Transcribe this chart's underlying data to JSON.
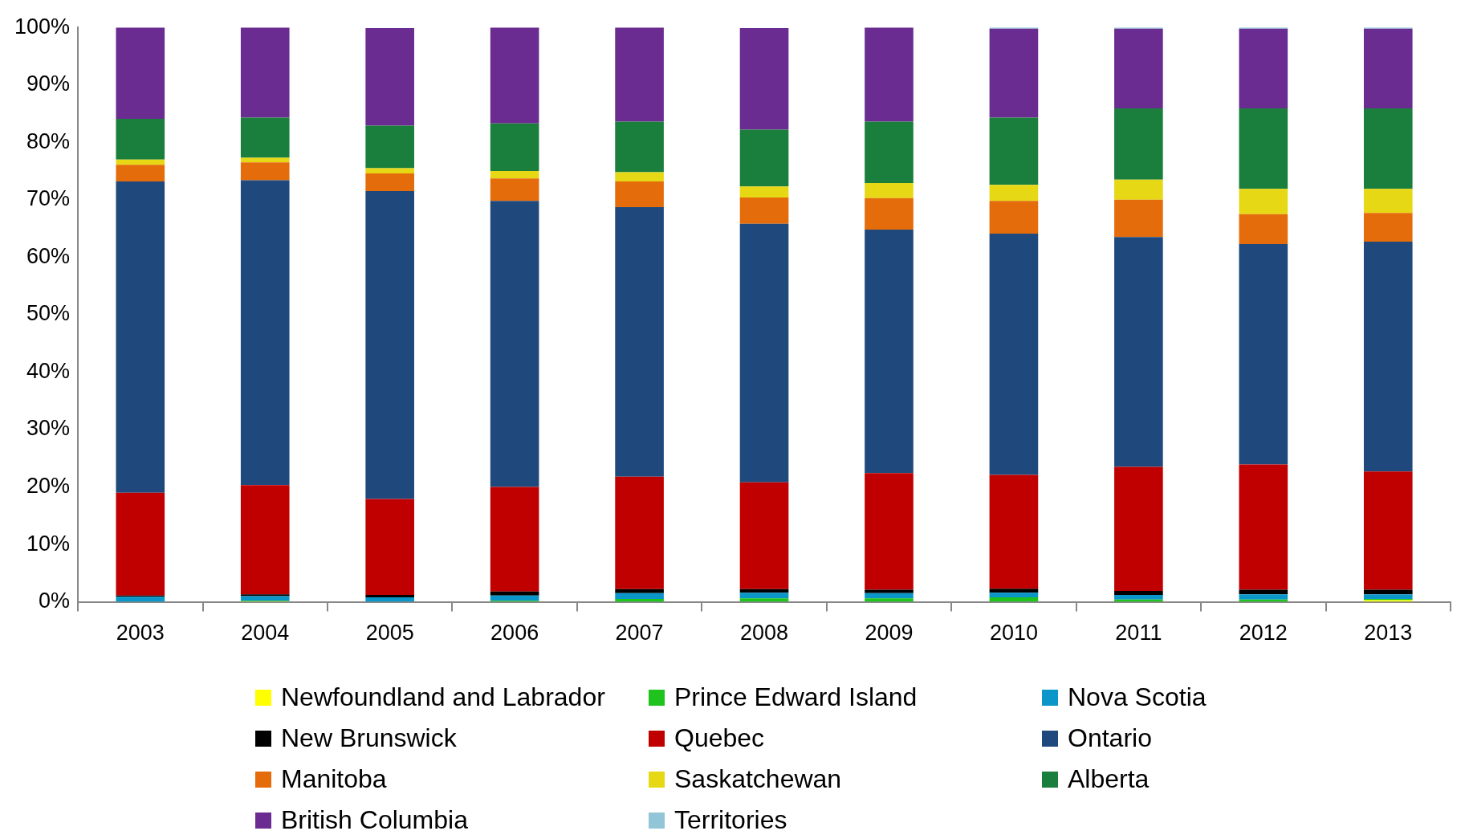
{
  "chart_data": {
    "type": "bar",
    "stacked": true,
    "categories": [
      "2003",
      "2004",
      "2005",
      "2006",
      "2007",
      "2008",
      "2009",
      "2010",
      "2011",
      "2012",
      "2013"
    ],
    "ylim": [
      0,
      100
    ],
    "yticks": [
      {
        "value": 0,
        "label": "0%"
      },
      {
        "value": 10,
        "label": "10%"
      },
      {
        "value": 20,
        "label": "20%"
      },
      {
        "value": 30,
        "label": "30%"
      },
      {
        "value": 40,
        "label": "40%"
      },
      {
        "value": 50,
        "label": "50%"
      },
      {
        "value": 60,
        "label": "60%"
      },
      {
        "value": 70,
        "label": "70%"
      },
      {
        "value": 80,
        "label": "80%"
      },
      {
        "value": 90,
        "label": "90%"
      },
      {
        "value": 100,
        "label": "100%"
      }
    ],
    "grid": false,
    "legend": "bottom",
    "series": [
      {
        "name": "Newfoundland and Labrador",
        "color": "#ffff00",
        "values": [
          0,
          0.1,
          0,
          0,
          0,
          null,
          0,
          0,
          0,
          0,
          0.3
        ]
      },
      {
        "name": "Prince Edward Island",
        "color": "#1ec31e",
        "values": [
          0,
          0.1,
          null,
          0.2,
          0.5,
          0.6,
          0.6,
          0.8,
          0.4,
          0.4,
          0.2
        ]
      },
      {
        "name": "Nova Scotia",
        "color": "#0a96c8",
        "values": [
          0.9,
          0.8,
          0.8,
          0.9,
          1.0,
          1.0,
          0.9,
          0.8,
          0.8,
          0.9,
          0.8
        ]
      },
      {
        "name": "New Brunswick",
        "color": "#000000",
        "values": [
          0.2,
          0.3,
          0.4,
          0.7,
          0.7,
          0.6,
          0.6,
          0.7,
          0.7,
          0.8,
          0.8
        ]
      },
      {
        "name": "Quebec",
        "color": "#c00000",
        "values": [
          17.9,
          19.0,
          16.7,
          18.2,
          19.6,
          18.6,
          20.3,
          19.8,
          21.6,
          21.8,
          20.6
        ]
      },
      {
        "name": "Ontario",
        "color": "#1f497d",
        "values": [
          54.2,
          53.1,
          53.6,
          49.8,
          46.9,
          45.0,
          42.4,
          42.0,
          40.0,
          38.4,
          40.0
        ]
      },
      {
        "name": "Manitoba",
        "color": "#e46c0a",
        "values": [
          2.9,
          3.1,
          3.1,
          3.9,
          4.5,
          4.6,
          5.5,
          5.7,
          6.5,
          5.2,
          5.0
        ]
      },
      {
        "name": "Saskatchewan",
        "color": "#e6d814",
        "values": [
          0.9,
          0.8,
          0.9,
          1.3,
          1.6,
          1.9,
          2.6,
          2.8,
          3.5,
          4.4,
          4.2
        ]
      },
      {
        "name": "Alberta",
        "color": "#1a7f3c",
        "values": [
          7.1,
          7.0,
          7.4,
          8.3,
          8.8,
          9.9,
          10.7,
          11.7,
          12.4,
          14.0,
          14.0
        ]
      },
      {
        "name": "British Columbia",
        "color": "#6a2c91",
        "values": [
          15.9,
          15.7,
          17.0,
          16.7,
          16.4,
          17.7,
          16.4,
          15.5,
          13.9,
          13.9,
          13.9
        ]
      },
      {
        "name": "Territories",
        "color": "#92c5d8",
        "values": [
          0,
          0,
          0,
          0,
          0,
          0,
          0,
          0.2,
          0.2,
          0.2,
          0.2
        ]
      }
    ]
  }
}
